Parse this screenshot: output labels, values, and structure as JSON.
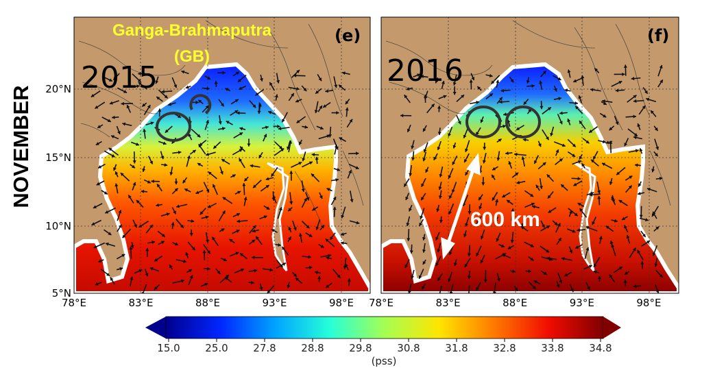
{
  "side_label": "NOVEMBER",
  "colors": {
    "land": "#c49a6c",
    "ocean_white": "#ffffff",
    "arrow": "#111111",
    "gb_text": "#ffff2e",
    "distance_arrow": "#ffffff"
  },
  "panels": [
    {
      "tag": "(e)",
      "year": "2015",
      "annotation_lines": [
        "Ganga-Brahmaputra",
        "(GB)"
      ],
      "eddies": 2,
      "distance_label": ""
    },
    {
      "tag": "(f)",
      "year": "2016",
      "annotation_lines": [],
      "eddies": 2,
      "distance_label": "600 km"
    }
  ],
  "axes": {
    "x_ticks": [
      "78°E",
      "83°E",
      "88°E",
      "93°E",
      "98°E"
    ],
    "y_ticks": [
      "20°N",
      "15°N",
      "10°N",
      "5°N"
    ],
    "lon_range": [
      78,
      100
    ],
    "lat_range": [
      5,
      25
    ]
  },
  "colorbar": {
    "ticks": [
      "15.0",
      "25.0",
      "27.8",
      "28.8",
      "29.8",
      "30.8",
      "31.8",
      "32.8",
      "33.8",
      "34.8"
    ],
    "unit": "(pss)",
    "colors": [
      "#00008f",
      "#0026ff",
      "#00a4ff",
      "#26ffd8",
      "#a4ff53",
      "#ffe500",
      "#ff7a00",
      "#f10c00",
      "#800000"
    ]
  }
}
